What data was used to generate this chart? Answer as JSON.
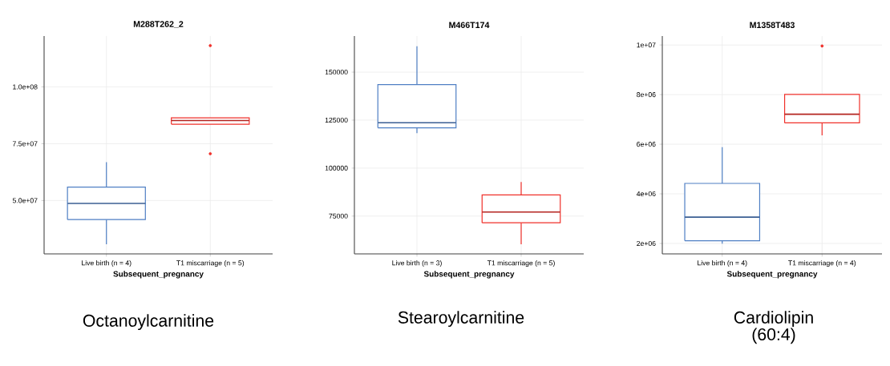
{
  "chart_data": [
    {
      "type": "box",
      "title": "M288T262_2",
      "xlabel": "Subsequent_pregnancy",
      "categories": [
        "Live birth (n = 4)",
        "T1 miscarriage (n = 5)"
      ],
      "boxes": [
        {
          "low": 30700000,
          "q1": 41600000,
          "median": 48700000,
          "q3": 55900000,
          "high": 66900000
        },
        {
          "low": 83600000,
          "q1": 83600000,
          "median": 85200000,
          "q3": 86400000,
          "high": 86400000,
          "outliers": [
            118200000,
            70600000
          ]
        }
      ],
      "colors": [
        "#4f7fc4",
        "#f0302a"
      ],
      "ylim": [
        26500000,
        122400000
      ],
      "yticks": [
        {
          "value": 50000000,
          "label": "5.0e+07"
        },
        {
          "value": 75000000,
          "label": "7.5e+07"
        },
        {
          "value": 100000000,
          "label": "1.0e+08"
        }
      ],
      "grid": true,
      "annotations": [
        "Octanoylcarnitine"
      ]
    },
    {
      "type": "box",
      "title": "M466T174",
      "xlabel": "Subsequent_pregnancy",
      "categories": [
        "Live birth (n = 3)",
        "T1 miscarriage (n = 5)"
      ],
      "boxes": [
        {
          "low": 118200,
          "q1": 121000,
          "median": 123600,
          "q3": 143500,
          "high": 163500
        },
        {
          "low": 60300,
          "q1": 71500,
          "median": 77100,
          "q3": 86000,
          "high": 92800
        }
      ],
      "colors": [
        "#4f7fc4",
        "#f0302a"
      ],
      "ylim": [
        55300,
        168800
      ],
      "yticks": [
        75000,
        100000,
        125000,
        150000
      ],
      "grid": true,
      "annotations": [
        "Stearoylcarnitine"
      ]
    },
    {
      "type": "box",
      "title": "M1358T483",
      "xlabel": "Subsequent_pregnancy",
      "categories": [
        "Live birth (n = 4)",
        "T1 miscarriage (n = 4)"
      ],
      "boxes": [
        {
          "low": 1990000,
          "q1": 2110000,
          "median": 3060000,
          "q3": 4420000,
          "high": 5880000
        },
        {
          "low": 6360000,
          "q1": 6860000,
          "median": 7210000,
          "q3": 8010000,
          "high": 8010000,
          "outliers": [
            9960000
          ]
        }
      ],
      "colors": [
        "#4f7fc4",
        "#f0302a"
      ],
      "ylim": [
        1580000,
        10360000
      ],
      "yticks": [
        {
          "value": 2000000,
          "label": "2e+06"
        },
        {
          "value": 4000000,
          "label": "4e+06"
        },
        {
          "value": 6000000,
          "label": "6e+06"
        },
        {
          "value": 8000000,
          "label": "8e+06"
        },
        {
          "value": 10000000,
          "label": "1e+07"
        }
      ],
      "grid": true,
      "annotations": [
        "Cardiolipin (60:4)"
      ]
    }
  ]
}
